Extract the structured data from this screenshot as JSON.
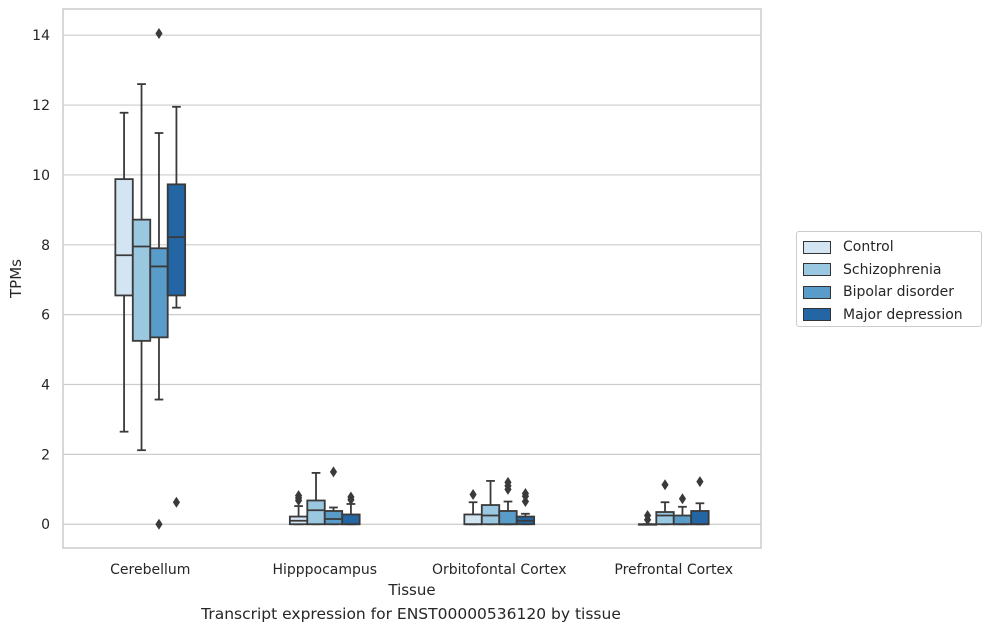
{
  "caption": "Transcript expression for ENST00000536120 by tissue",
  "chart_data": {
    "type": "boxplot",
    "title": "",
    "xlabel": "Tissue",
    "ylabel": "TPMs",
    "ylim": [
      -0.68,
      14.75
    ],
    "yticks": [
      0,
      2,
      4,
      6,
      8,
      10,
      12,
      14
    ],
    "grid": "horizontal",
    "legend_position": "right",
    "categories": [
      "Cerebellum",
      "Hipppocampus",
      "Orbitofontal Cortex",
      "Prefrontal Cortex"
    ],
    "series": [
      {
        "name": "Control",
        "color": "#d3e4f3",
        "boxes": [
          {
            "whisker_low": 2.65,
            "q1": 6.55,
            "median": 7.7,
            "q3": 9.88,
            "whisker_high": 11.78,
            "outliers": []
          },
          {
            "whisker_low": 0.0,
            "q1": 0.0,
            "median": 0.1,
            "q3": 0.22,
            "whisker_high": 0.52,
            "outliers": [
              0.68,
              0.75,
              0.82
            ]
          },
          {
            "whisker_low": 0.0,
            "q1": 0.0,
            "median": 0.0,
            "q3": 0.28,
            "whisker_high": 0.63,
            "outliers": [
              0.85
            ]
          },
          {
            "whisker_low": 0.0,
            "q1": 0.0,
            "median": 0.0,
            "q3": 0.0,
            "whisker_high": 0.0,
            "outliers": [
              0.13,
              0.25
            ]
          }
        ]
      },
      {
        "name": "Schizophrenia",
        "color": "#9ac8e0",
        "boxes": [
          {
            "whisker_low": 2.12,
            "q1": 5.25,
            "median": 7.95,
            "q3": 8.72,
            "whisker_high": 12.6,
            "outliers": []
          },
          {
            "whisker_low": 0.0,
            "q1": 0.0,
            "median": 0.4,
            "q3": 0.68,
            "whisker_high": 1.47,
            "outliers": []
          },
          {
            "whisker_low": 0.0,
            "q1": 0.0,
            "median": 0.25,
            "q3": 0.55,
            "whisker_high": 1.24,
            "outliers": []
          },
          {
            "whisker_low": 0.0,
            "q1": 0.0,
            "median": 0.25,
            "q3": 0.35,
            "whisker_high": 0.63,
            "outliers": [
              1.13
            ]
          }
        ]
      },
      {
        "name": "Bipolar disorder",
        "color": "#5a9cc9",
        "boxes": [
          {
            "whisker_low": 3.57,
            "q1": 5.35,
            "median": 7.38,
            "q3": 7.9,
            "whisker_high": 11.2,
            "outliers": [
              0.0,
              14.05
            ]
          },
          {
            "whisker_low": 0.0,
            "q1": 0.0,
            "median": 0.15,
            "q3": 0.38,
            "whisker_high": 0.48,
            "outliers": [
              1.5
            ]
          },
          {
            "whisker_low": 0.0,
            "q1": 0.0,
            "median": 0.0,
            "q3": 0.38,
            "whisker_high": 0.65,
            "outliers": [
              1.0,
              1.1,
              1.2
            ]
          },
          {
            "whisker_low": 0.0,
            "q1": 0.0,
            "median": 0.0,
            "q3": 0.25,
            "whisker_high": 0.5,
            "outliers": [
              0.73
            ]
          }
        ]
      },
      {
        "name": "Major depression",
        "color": "#2465a4",
        "boxes": [
          {
            "whisker_low": 6.2,
            "q1": 6.55,
            "median": 8.22,
            "q3": 9.73,
            "whisker_high": 11.95,
            "outliers": [
              0.63
            ]
          },
          {
            "whisker_low": 0.0,
            "q1": 0.0,
            "median": 0.0,
            "q3": 0.28,
            "whisker_high": 0.58,
            "outliers": [
              0.7,
              0.78
            ]
          },
          {
            "whisker_low": 0.0,
            "q1": 0.0,
            "median": 0.1,
            "q3": 0.22,
            "whisker_high": 0.3,
            "outliers": [
              0.65,
              0.8,
              0.88
            ]
          },
          {
            "whisker_low": 0.0,
            "q1": 0.0,
            "median": 0.0,
            "q3": 0.38,
            "whisker_high": 0.6,
            "outliers": [
              1.22
            ]
          }
        ]
      }
    ]
  }
}
